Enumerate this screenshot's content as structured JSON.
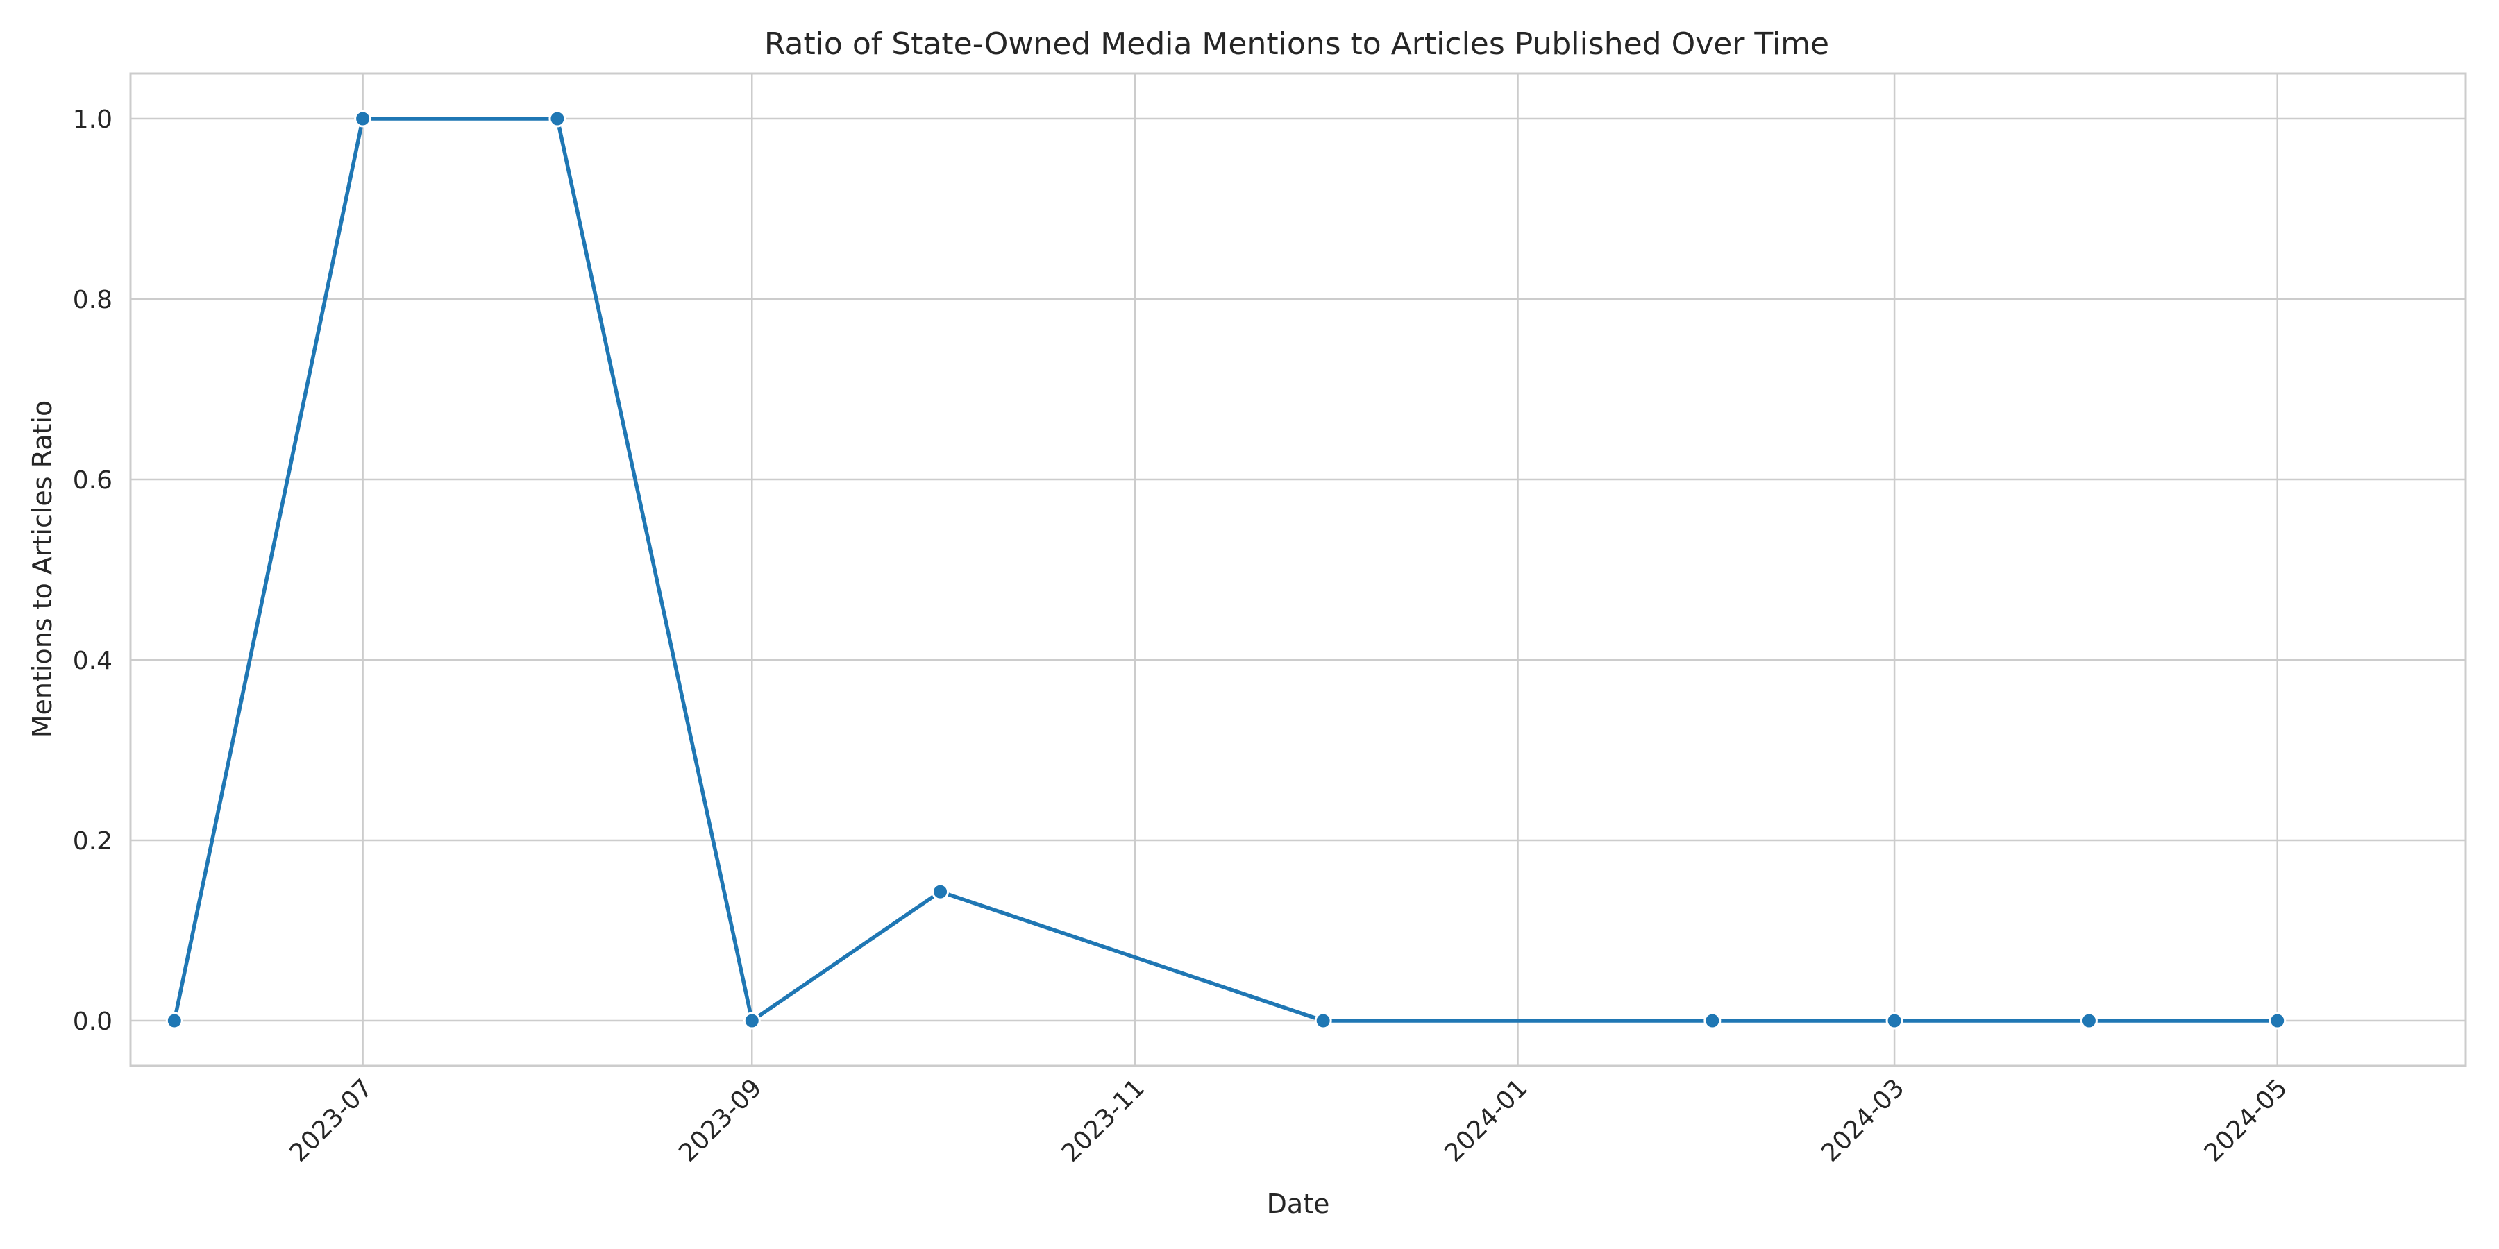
{
  "chart_data": {
    "type": "line",
    "title": "Ratio of State-Owned Media Mentions to Articles Published Over Time",
    "xlabel": "Date",
    "ylabel": "Mentions to Articles Ratio",
    "x_axis_type": "date",
    "xlim": [
      "2023-05-25",
      "2024-05-31"
    ],
    "ylim": [
      -0.05,
      1.05
    ],
    "x_ticks": [
      "2023-07",
      "2023-09",
      "2023-11",
      "2024-01",
      "2024-03",
      "2024-05"
    ],
    "y_ticks": [
      "0.0",
      "0.2",
      "0.4",
      "0.6",
      "0.8",
      "1.0"
    ],
    "grid": true,
    "legend": false,
    "series": [
      {
        "color": "#1f77b4",
        "marker": "circle",
        "points": [
          {
            "x": "2023-06-01",
            "y": 0.0
          },
          {
            "x": "2023-07-01",
            "y": 1.0
          },
          {
            "x": "2023-08-01",
            "y": 1.0
          },
          {
            "x": "2023-09-01",
            "y": 0.0
          },
          {
            "x": "2023-10-01",
            "y": 0.143
          },
          {
            "x": "2023-12-01",
            "y": 0.0
          },
          {
            "x": "2024-02-01",
            "y": 0.0
          },
          {
            "x": "2024-03-01",
            "y": 0.0
          },
          {
            "x": "2024-04-01",
            "y": 0.0
          },
          {
            "x": "2024-05-01",
            "y": 0.0
          }
        ]
      }
    ]
  }
}
